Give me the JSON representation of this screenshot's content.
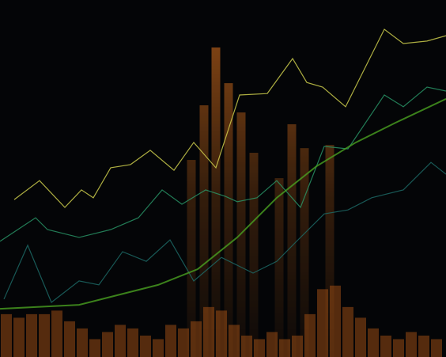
{
  "chart_data": {
    "type": "bar",
    "xlim": [
      0,
      564
    ],
    "ylim": [
      0,
      100
    ],
    "bars": {
      "color": "#d8701e",
      "x": [
        242,
        258,
        273,
        289,
        305,
        321,
        353,
        369,
        385,
        417
      ],
      "values": [
        55.2,
        70.5,
        86.7,
        76.7,
        68.5,
        57.2,
        50.1,
        65.2,
        58.5,
        59.4
      ]
    },
    "volume": {
      "color": "#b85a18",
      "x": [
        8,
        24,
        40,
        56,
        72,
        88,
        104,
        120,
        136,
        152,
        168,
        184,
        200,
        216,
        232,
        248,
        264,
        280,
        296,
        312,
        328,
        344,
        360,
        376,
        392,
        408,
        424,
        440,
        456,
        472,
        488,
        504,
        520,
        536,
        552
      ],
      "values": [
        12,
        11,
        12,
        12,
        13,
        10,
        8,
        5,
        7,
        9,
        8,
        6,
        5,
        9,
        8,
        10,
        14,
        13,
        9,
        6,
        5,
        7,
        5,
        6,
        12,
        19,
        20,
        14,
        11,
        8,
        6,
        5,
        7,
        6,
        5
      ]
    },
    "series": [
      {
        "color": "#d8d850",
        "x": [
          18,
          50,
          82,
          103,
          118,
          140,
          165,
          190,
          220,
          245,
          273,
          303,
          338,
          370,
          388,
          408,
          437,
          486,
          510,
          540,
          564
        ],
        "values": [
          44.1,
          49.4,
          41.9,
          46.8,
          44.6,
          53.0,
          53.9,
          57.9,
          52.3,
          60.1,
          53.0,
          73.4,
          73.8,
          83.6,
          76.9,
          75.6,
          70.1,
          91.8,
          87.8,
          88.5,
          90.0
        ]
      },
      {
        "color": "#2a9a6a",
        "x": [
          0,
          45,
          60,
          100,
          140,
          175,
          205,
          230,
          260,
          285,
          300,
          325,
          350,
          380,
          410,
          440,
          486,
          510,
          540,
          564
        ],
        "values": [
          32.4,
          39.0,
          35.7,
          33.5,
          35.7,
          39.0,
          46.8,
          42.8,
          46.8,
          45.0,
          43.5,
          44.6,
          49.4,
          41.9,
          59.0,
          58.3,
          73.4,
          70.1,
          75.6,
          74.5
        ]
      },
      {
        "color": "#1e6e6a",
        "x": [
          5,
          35,
          65,
          100,
          125,
          155,
          185,
          215,
          245,
          280,
          320,
          350,
          375,
          410,
          440,
          470,
          510,
          545,
          564
        ],
        "values": [
          16.2,
          31.3,
          15.3,
          21.3,
          20.2,
          29.5,
          26.8,
          32.8,
          21.3,
          27.9,
          23.5,
          26.8,
          32.4,
          40.1,
          41.2,
          44.6,
          46.8,
          54.5,
          51.2
        ]
      },
      {
        "color": "#4aa020",
        "x": [
          0,
          100,
          200,
          250,
          300,
          350,
          400,
          450,
          500,
          564
        ],
        "values": [
          13.5,
          14.6,
          20.2,
          24.6,
          33.5,
          44.6,
          53.4,
          60.1,
          65.6,
          72.3
        ]
      }
    ]
  }
}
